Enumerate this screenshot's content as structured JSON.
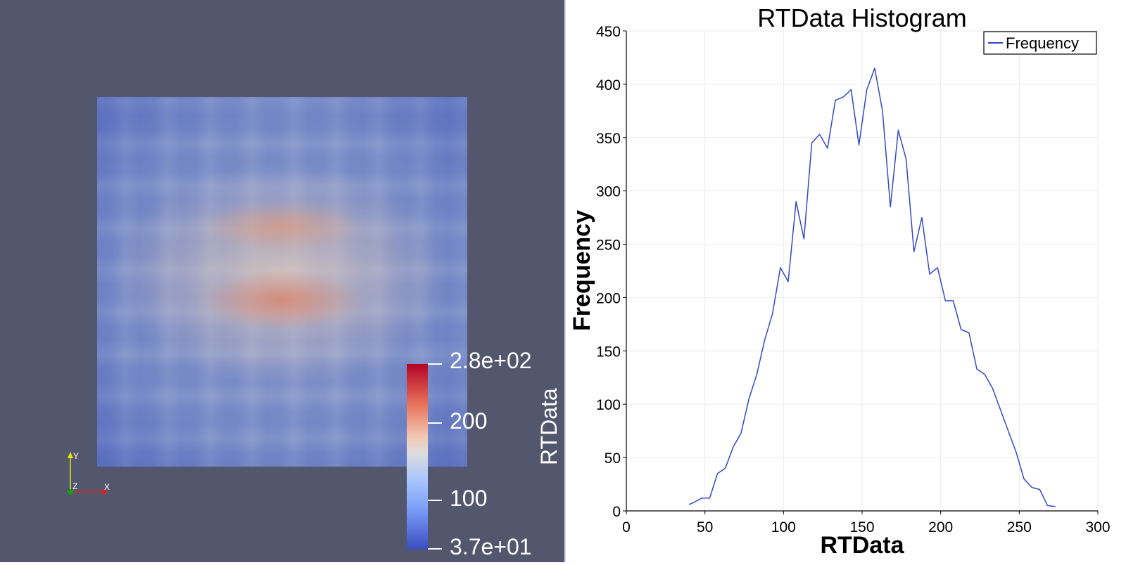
{
  "render_view": {
    "colorbar": {
      "title": "RTData",
      "max_label": "2.8e+02",
      "label_200": "200",
      "label_100": "100",
      "min_label": "3.7e+01"
    },
    "axes": {
      "x": "X",
      "y": "Y",
      "z": "Z"
    }
  },
  "chart_data": {
    "type": "line",
    "title": "RTData Histogram",
    "xlabel": "RTData",
    "ylabel": "Frequency",
    "xlim": [
      0,
      300
    ],
    "ylim": [
      0,
      450
    ],
    "xticks": [
      "0",
      "50",
      "100",
      "150",
      "200",
      "250",
      "300"
    ],
    "yticks": [
      "0",
      "50",
      "100",
      "150",
      "200",
      "250",
      "300",
      "350",
      "400",
      "450"
    ],
    "grid": true,
    "legend": "top-right",
    "series": [
      {
        "name": "Frequency",
        "color": "#3548c8",
        "x": [
          40,
          43,
          48,
          53,
          58,
          63,
          68,
          73,
          78,
          83,
          88,
          93,
          98,
          103,
          108,
          113,
          118,
          123,
          128,
          133,
          138,
          143,
          148,
          153,
          158,
          163,
          168,
          173,
          178,
          183,
          188,
          193,
          198,
          203,
          208,
          213,
          218,
          223,
          228,
          233,
          238,
          243,
          248,
          253,
          258,
          263,
          268,
          273
        ],
        "y": [
          6,
          8,
          12,
          12,
          35,
          40,
          60,
          73,
          105,
          128,
          160,
          185,
          228,
          215,
          290,
          255,
          345,
          353,
          340,
          385,
          388,
          395,
          343,
          395,
          415,
          375,
          285,
          357,
          330,
          243,
          275,
          222,
          228,
          197,
          197,
          170,
          167,
          133,
          128,
          115,
          95,
          75,
          55,
          30,
          22,
          20,
          5,
          4
        ]
      }
    ]
  }
}
